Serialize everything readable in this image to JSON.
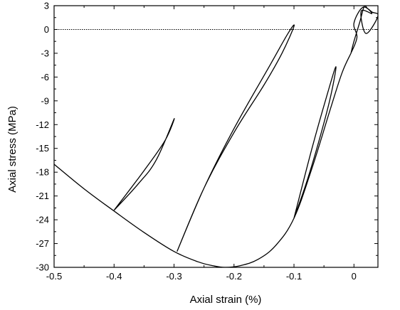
{
  "chart_data": {
    "type": "line",
    "title": "",
    "xlabel": "Axial strain (%)",
    "ylabel": "Axial stress (MPa)",
    "xlim": [
      -0.5,
      0.04
    ],
    "ylim": [
      -30,
      3
    ],
    "x_ticks": [
      -0.5,
      -0.4,
      -0.3,
      -0.2,
      -0.1,
      0
    ],
    "x_tick_labels": [
      "-0.5",
      "-0.4",
      "-0.3",
      "-0.2",
      "-0.1",
      "0"
    ],
    "y_ticks": [
      3,
      0,
      -3,
      -6,
      -9,
      -12,
      -15,
      -18,
      -21,
      -24,
      -27,
      -30
    ],
    "y_tick_labels": [
      "3",
      "0",
      "-3",
      "-6",
      "-9",
      "-12",
      "-15",
      "-18",
      "-21",
      "-24",
      "-27",
      "-30"
    ],
    "grid": false,
    "legend": "none",
    "reference_line": {
      "y": 0,
      "style": "dotted"
    },
    "series": [
      {
        "role": "envelope",
        "x": [
          -0.5,
          -0.45,
          -0.4,
          -0.35,
          -0.3,
          -0.26,
          -0.235,
          -0.215,
          -0.19,
          -0.16,
          -0.13,
          -0.1,
          -0.07,
          -0.04,
          -0.02,
          -0.005
        ],
        "y": [
          -17.0,
          -20.1,
          -22.9,
          -25.6,
          -28.0,
          -29.3,
          -29.8,
          -30.0,
          -29.8,
          -29.0,
          -27.2,
          -23.8,
          -17.5,
          -10.2,
          -5.5,
          -3.0
        ]
      },
      {
        "role": "unload-reload loop at -0.1",
        "x": [
          -0.1,
          -0.07,
          -0.045,
          -0.03,
          -0.04,
          -0.06,
          -0.08,
          -0.1
        ],
        "y": [
          -23.8,
          -15.0,
          -8.3,
          -4.7,
          -8.8,
          -14.5,
          -19.5,
          -23.8
        ]
      },
      {
        "role": "unload-reload loop at -0.2",
        "x": [
          -0.295,
          -0.25,
          -0.2,
          -0.15,
          -0.12,
          -0.1,
          -0.11,
          -0.14,
          -0.2,
          -0.25,
          -0.295
        ],
        "y": [
          -28.0,
          -20.0,
          -13.0,
          -7.0,
          -3.0,
          0.4,
          -0.5,
          -4.5,
          -12.5,
          -20.0,
          -28.0
        ]
      },
      {
        "role": "unload-reload loop at -0.4",
        "x": [
          -0.4,
          -0.36,
          -0.33,
          -0.3,
          -0.315,
          -0.35,
          -0.4
        ],
        "y": [
          -22.8,
          -19.5,
          -16.5,
          -11.3,
          -14.0,
          -17.8,
          -22.8
        ]
      },
      {
        "role": "loops near origin",
        "x": [
          -0.005,
          0.0,
          0.01,
          0.017,
          0.022,
          0.03,
          0.04,
          0.02,
          0.012,
          0.03,
          0.015,
          0.0,
          0.005,
          -0.005
        ],
        "y": [
          -3.0,
          -1.5,
          1.0,
          2.9,
          2.7,
          2.2,
          1.7,
          -0.5,
          2.3,
          2.0,
          2.8,
          0.8,
          -1.0,
          -3.0
        ]
      }
    ]
  }
}
